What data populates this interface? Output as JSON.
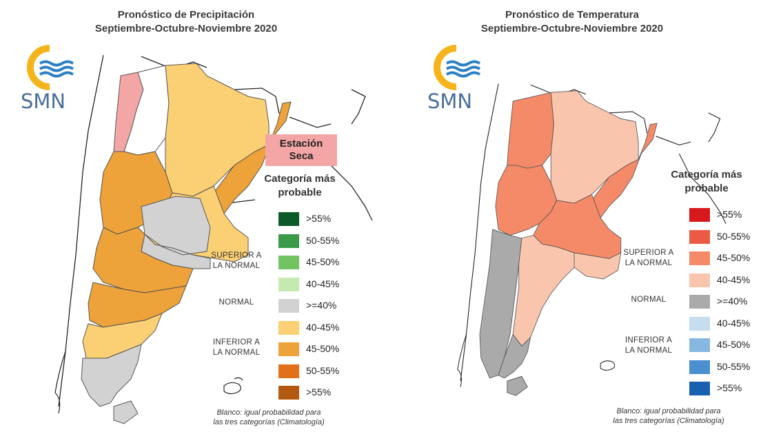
{
  "precipitation": {
    "title_line1": "Pronóstico de Precipitación",
    "title_line2": "Septiembre-Octubre-Noviembre 2020",
    "logo_text": "SMN",
    "dry_season_line1": "Estación",
    "dry_season_line2": "Seca",
    "legend_heading_line1": "Categoría más",
    "legend_heading_line2": "probable",
    "legend": [
      {
        "label": ">55%",
        "color": "#0b5a27"
      },
      {
        "label": "50-55%",
        "color": "#3a9a47"
      },
      {
        "label": "45-50%",
        "color": "#72c462"
      },
      {
        "label": "40-45%",
        "color": "#c5eab0"
      },
      {
        "label": ">=40%",
        "color": "#d2d2d2"
      },
      {
        "label": "40-45%",
        "color": "#fbcf73"
      },
      {
        "label": "45-50%",
        "color": "#eda23a"
      },
      {
        "label": "50-55%",
        "color": "#e2701a"
      },
      {
        "label": ">55%",
        "color": "#b45a10"
      }
    ],
    "cat_superior_line1": "SUPERIOR A",
    "cat_superior_line2": "LA NORMAL",
    "cat_normal": "NORMAL",
    "cat_inferior_line1": "INFERIOR A",
    "cat_inferior_line2": "LA NORMAL",
    "footnote_line1": "Blanco: igual probabilidad para",
    "footnote_line2": "las tres categorías (Climatología)"
  },
  "temperature": {
    "title_line1": "Pronóstico de Temperatura",
    "title_line2": "Septiembre-Octubre-Noviembre 2020",
    "logo_text": "SMN",
    "legend_heading_line1": "Categoría más",
    "legend_heading_line2": "probable",
    "legend": [
      {
        "label": ">55%",
        "color": "#d7191c"
      },
      {
        "label": "50-55%",
        "color": "#ec5a45"
      },
      {
        "label": "45-50%",
        "color": "#f48a68"
      },
      {
        "label": "40-45%",
        "color": "#f9c6ad"
      },
      {
        "label": ">=40%",
        "color": "#aaaaaa"
      },
      {
        "label": "40-45%",
        "color": "#c6ddf0"
      },
      {
        "label": "45-50%",
        "color": "#86b7e0"
      },
      {
        "label": "50-55%",
        "color": "#4a8fcf"
      },
      {
        "label": ">55%",
        "color": "#1761b0"
      }
    ],
    "cat_superior_line1": "SUPERIOR A",
    "cat_superior_line2": "LA NORMAL",
    "cat_normal": "NORMAL",
    "cat_inferior_line1": "INFERIOR A",
    "cat_inferior_line2": "LA NORMAL",
    "footnote_line1": "Blanco: igual probabilidad para",
    "footnote_line2": "las tres categorías (Climatología)"
  }
}
